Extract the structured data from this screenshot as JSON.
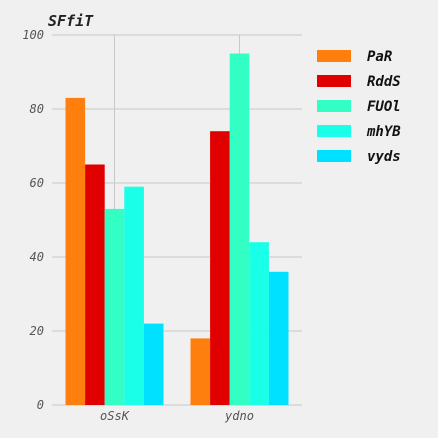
{
  "chart_data": {
    "type": "bar",
    "title": "SFfiT",
    "xlabel": "",
    "ylabel": "",
    "categories": [
      "oSsK",
      "ydno"
    ],
    "ylim": [
      0,
      100
    ],
    "yticks": [
      0,
      20,
      40,
      60,
      80,
      100
    ],
    "grid": true,
    "legend_position": "right",
    "series": [
      {
        "name": "PaR",
        "values": [
          83,
          18
        ],
        "color": "#ff7f0e"
      },
      {
        "name": "RddS",
        "values": [
          65,
          74
        ],
        "color": "#e00000"
      },
      {
        "name": "FUOl",
        "values": [
          53,
          95
        ],
        "color": "#33ffc4"
      },
      {
        "name": "mhYB",
        "values": [
          59,
          44
        ],
        "color": "#19ffe8"
      },
      {
        "name": "vyds",
        "values": [
          22,
          36
        ],
        "color": "#00e1ff"
      }
    ]
  }
}
